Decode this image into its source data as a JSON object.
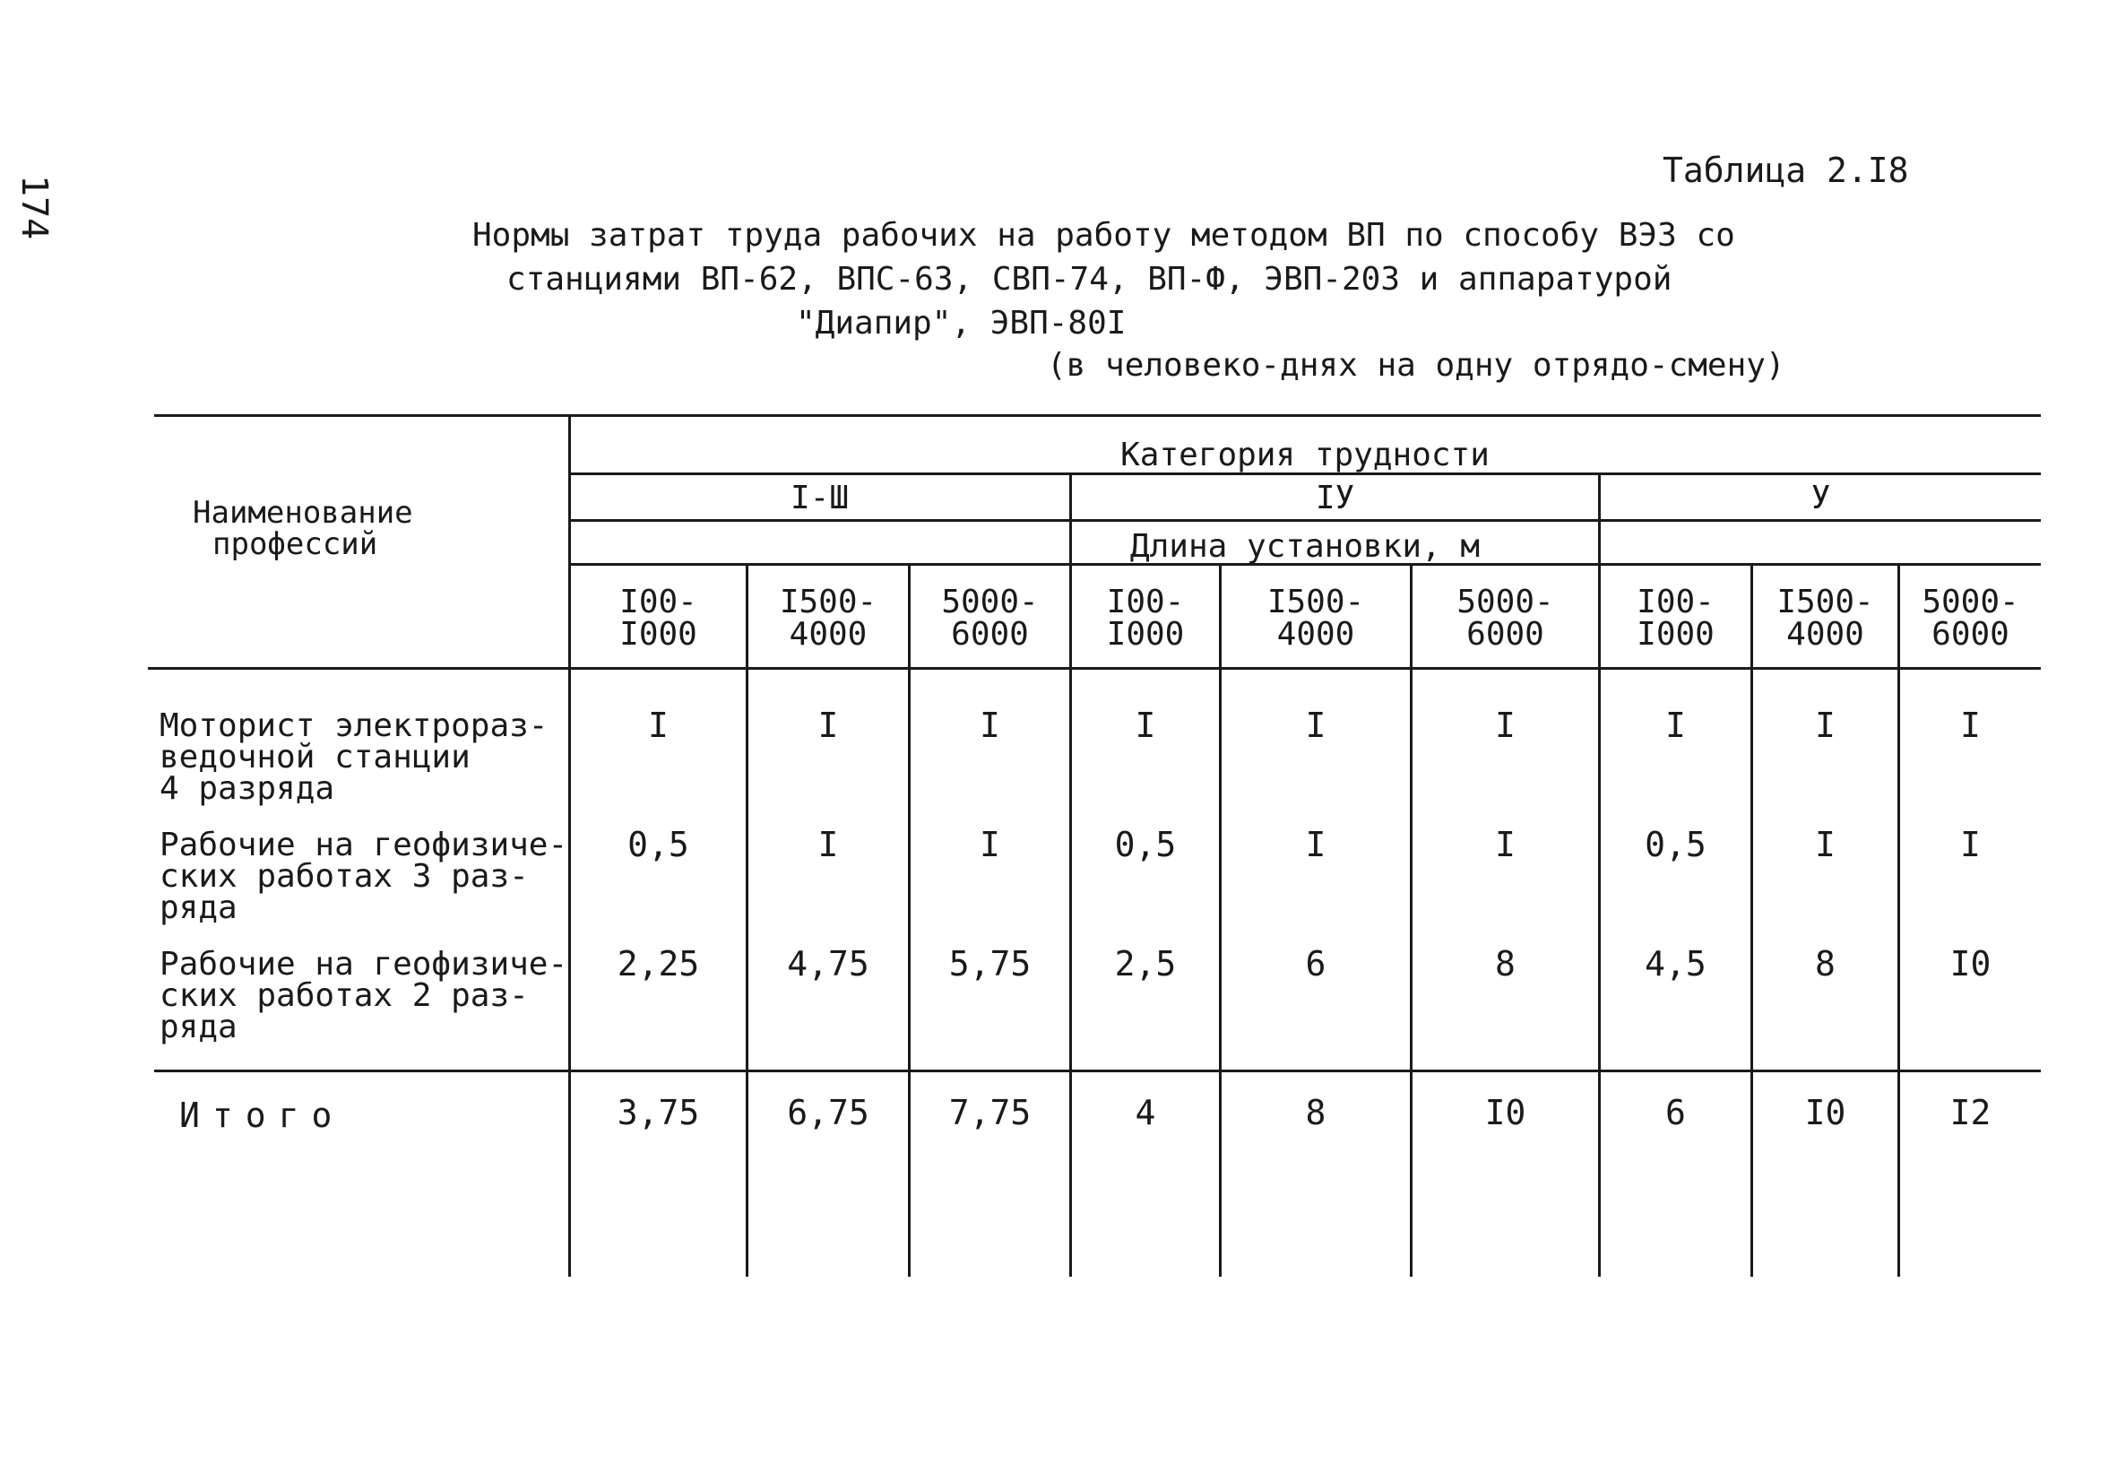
{
  "page_number": "174",
  "table_label": "Таблица 2.I8",
  "title": {
    "line1": "Нормы затрат труда рабочих на работу методом ВП по способу ВЭЗ со",
    "line2": "станциями ВП-62, ВПС-63, СВП-74, ВП-Ф, ЭВП-203 и аппаратурой",
    "line3": "\"Диапир\", ЭВП-80I"
  },
  "units_note": "(в человеко-днях на одну отрядо-смену)",
  "table": {
    "profession_header": [
      "Наименование",
      "профессий"
    ],
    "category_header": "Категория трудности",
    "groups": [
      "I-Ш",
      "IУ",
      "У"
    ],
    "length_header": "Длина установки, м",
    "lengths": [
      [
        "I00-",
        "I000"
      ],
      [
        "I500-",
        "4000"
      ],
      [
        "5000-",
        "6000"
      ],
      [
        "I00-",
        "I000"
      ],
      [
        "I500-",
        "4000"
      ],
      [
        "5000-",
        "6000"
      ],
      [
        "I00-",
        "I000"
      ],
      [
        "I500-",
        "4000"
      ],
      [
        "5000-",
        "6000"
      ]
    ],
    "rows": [
      {
        "label": [
          "Моторист электрораз-",
          "ведочной станции",
          "4 разряда"
        ],
        "values": [
          "I",
          "I",
          "I",
          "I",
          "I",
          "I",
          "I",
          "I",
          "I"
        ]
      },
      {
        "label": [
          "Рабочие на геофизиче-",
          "ских работах 3 раз-",
          "ряда"
        ],
        "values": [
          "0,5",
          "I",
          "I",
          "0,5",
          "I",
          "I",
          "0,5",
          "I",
          "I"
        ]
      },
      {
        "label": [
          "Рабочие на геофизиче-",
          "ских работах 2 раз-",
          "ряда"
        ],
        "values": [
          "2,25",
          "4,75",
          "5,75",
          "2,5",
          "6",
          "8",
          "4,5",
          "8",
          "I0"
        ]
      }
    ],
    "total": {
      "label": "Итого",
      "values": [
        "3,75",
        "6,75",
        "7,75",
        "4",
        "8",
        "I0",
        "6",
        "I0",
        "I2"
      ]
    }
  }
}
